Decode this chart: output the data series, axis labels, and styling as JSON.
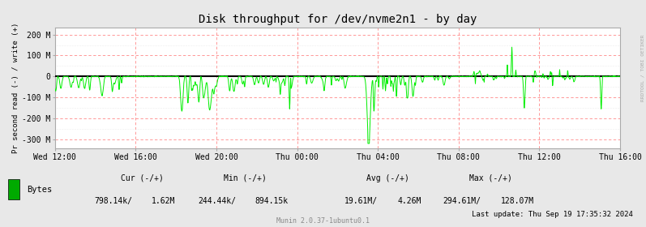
{
  "title": "Disk throughput for /dev/nvme2n1 - by day",
  "ylabel": "Pr second read (-) / write (+)",
  "background_color": "#E8E8E8",
  "plot_bg_color": "#FFFFFF",
  "grid_color_major": "#FF8888",
  "grid_color_minor": "#DDDDDD",
  "line_color": "#00EE00",
  "zero_line_color": "#000000",
  "border_color": "#AAAACC",
  "yticks": [
    -300,
    -200,
    -100,
    0,
    100,
    200
  ],
  "ytick_labels": [
    "-300 M",
    "-200 M",
    "-100 M",
    "0",
    "100 M",
    "200 M"
  ],
  "ylim": [
    -345,
    235
  ],
  "xtick_labels": [
    "Wed 12:00",
    "Wed 16:00",
    "Wed 20:00",
    "Thu 00:00",
    "Thu 04:00",
    "Thu 08:00",
    "Thu 12:00",
    "Thu 16:00"
  ],
  "legend_label": "Bytes",
  "legend_color": "#00AA00",
  "stats_cur_label": "Cur (-/+)",
  "stats_cur_neg": "798.14k/",
  "stats_cur_pos": "1.62M",
  "stats_min_label": "Min (-/+)",
  "stats_min_neg": "244.44k/",
  "stats_min_pos": "894.15k",
  "stats_avg_label": "Avg (-/+)",
  "stats_avg_neg": "19.61M/",
  "stats_avg_pos": "4.26M",
  "stats_max_label": "Max (-/+)",
  "stats_max_neg": "294.61M/",
  "stats_max_pos": "128.07M",
  "last_update": "Last update: Thu Sep 19 17:35:32 2024",
  "munin_version": "Munin 2.0.37-1ubuntu0.1",
  "watermark": "RRDTOOL / TOBI OETIKER",
  "title_fontsize": 10,
  "axis_fontsize": 7,
  "legend_fontsize": 7.5
}
